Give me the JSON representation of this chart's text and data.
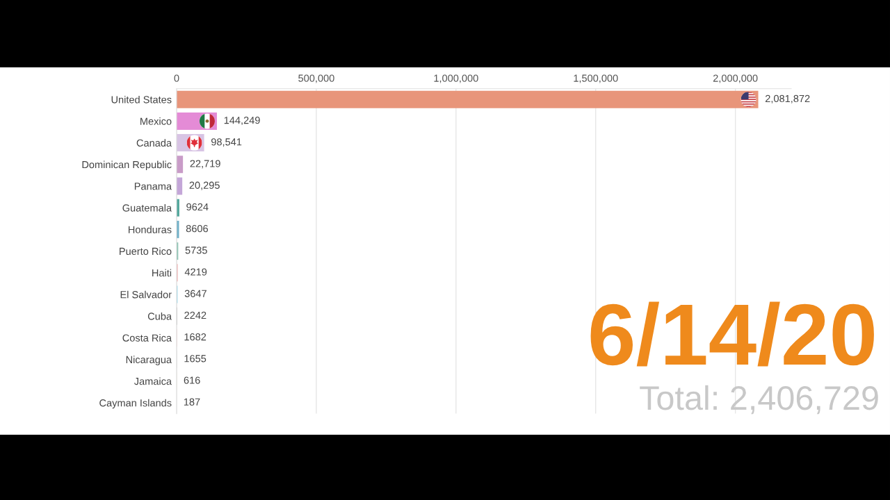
{
  "chart_data": {
    "type": "bar",
    "orientation": "horizontal",
    "title": "6/14/20",
    "subtitle": "Total: 2,406,729",
    "categories": [
      "United States",
      "Mexico",
      "Canada",
      "Dominican Republic",
      "Panama",
      "Guatemala",
      "Honduras",
      "Puerto Rico",
      "Haiti",
      "El Salvador",
      "Cuba",
      "Costa Rica",
      "Nicaragua",
      "Jamaica",
      "Cayman Islands"
    ],
    "values": [
      2081872,
      144249,
      98541,
      22719,
      20295,
      9624,
      8606,
      5735,
      4219,
      3647,
      2242,
      1682,
      1655,
      616,
      187
    ],
    "colors": [
      "#e8957a",
      "#e48bd6",
      "#d8c4e4",
      "#c99cc8",
      "#c4a6d8",
      "#4fa59a",
      "#6fb0c8",
      "#8dc4b4",
      "#f2b8b8",
      "#a3dcec",
      "#b8b8b8",
      "#f3d0d0",
      "#dcdcdc",
      "#e6dcb8",
      "#e0e0e0"
    ],
    "value_labels": [
      "2,081,872",
      "144,249",
      "98,541",
      "22,719",
      "20,295",
      "9624",
      "8606",
      "5735",
      "4219",
      "3647",
      "2242",
      "1682",
      "1655",
      "616",
      "187"
    ],
    "xlim": [
      0,
      2200000
    ],
    "xticks": [
      0,
      {
        "value": 500000,
        "label": "500,000"
      },
      {
        "value": 1000000,
        "label": "1,000,000"
      },
      {
        "value": 1500000,
        "label": "1,500,000"
      },
      {
        "value": 2000000,
        "label": "2,000,000"
      }
    ],
    "grid": "x"
  }
}
